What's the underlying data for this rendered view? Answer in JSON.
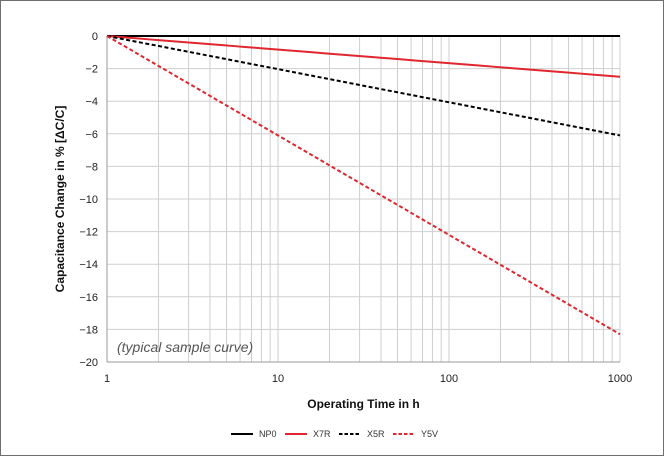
{
  "chart_data": {
    "type": "line",
    "xlabel": "Operating Time in h",
    "ylabel": "Capacitance Change in % [ΔC/C]",
    "xscale": "log",
    "xlim": [
      1,
      1000
    ],
    "ylim": [
      -20,
      0
    ],
    "xticks": [
      {
        "value": 1,
        "label": "1"
      },
      {
        "value": 10,
        "label": "10"
      },
      {
        "value": 100,
        "label": "100"
      },
      {
        "value": 1000,
        "label": "1000"
      }
    ],
    "yticks": [
      {
        "value": 0,
        "label": "0"
      },
      {
        "value": -2,
        "label": "−2"
      },
      {
        "value": -4,
        "label": "−4"
      },
      {
        "value": -6,
        "label": "−6"
      },
      {
        "value": -8,
        "label": "−8"
      },
      {
        "value": -10,
        "label": "−10"
      },
      {
        "value": -12,
        "label": "−12"
      },
      {
        "value": -14,
        "label": "−14"
      },
      {
        "value": -16,
        "label": "−16"
      },
      {
        "value": -18,
        "label": "−18"
      },
      {
        "value": -20,
        "label": "−20"
      }
    ],
    "grid": true,
    "legend_position": "bottom",
    "annotation": "(typical sample curve)",
    "series": [
      {
        "name": "NP0",
        "color": "#000000",
        "dash": "solid",
        "x": [
          1,
          1000
        ],
        "y": [
          0,
          0
        ]
      },
      {
        "name": "X7R",
        "color": "#e0262e",
        "dash": "solid",
        "x": [
          1,
          1000
        ],
        "y": [
          0,
          -2.5
        ]
      },
      {
        "name": "X5R",
        "color": "#000000",
        "dash": "dashed",
        "x": [
          1,
          1000
        ],
        "y": [
          0,
          -6.1
        ]
      },
      {
        "name": "Y5V",
        "color": "#e0262e",
        "dash": "dashed",
        "x": [
          1,
          1000
        ],
        "y": [
          0,
          -18.3
        ]
      }
    ]
  }
}
